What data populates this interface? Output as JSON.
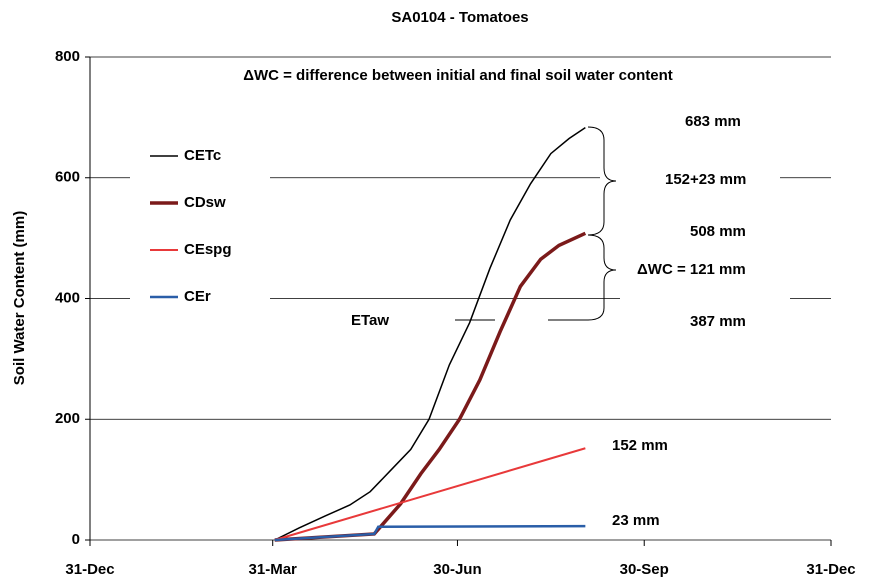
{
  "chart_data": {
    "type": "line",
    "title": "SA0104 - Tomatoes",
    "y_label": "Soil Water Content (mm)",
    "xlim": [
      0,
      365
    ],
    "xticks": [
      {
        "value": 0,
        "label": "31-Dec"
      },
      {
        "value": 90,
        "label": "31-Mar"
      },
      {
        "value": 181,
        "label": "30-Jun"
      },
      {
        "value": 273,
        "label": "30-Sep"
      },
      {
        "value": 365,
        "label": "31-Dec"
      }
    ],
    "ylim": [
      0,
      800
    ],
    "yticks": [
      0,
      200,
      400,
      600,
      800
    ],
    "grid": true,
    "series": [
      {
        "name": "CETc",
        "color": "#000000",
        "x": [
          91,
          103,
          116,
          128,
          138,
          148,
          158,
          167,
          177,
          187,
          197,
          207,
          217,
          227,
          236,
          244
        ],
        "values": [
          0,
          20,
          40,
          58,
          80,
          115,
          150,
          200,
          290,
          360,
          450,
          530,
          590,
          640,
          665,
          683
        ]
      },
      {
        "name": "CDsw",
        "color": "#7b1a1a",
        "x": [
          91,
          140,
          153,
          163,
          172,
          182,
          192,
          202,
          212,
          222,
          231,
          244
        ],
        "values": [
          0,
          10,
          60,
          110,
          150,
          200,
          265,
          345,
          420,
          465,
          488,
          508
        ]
      },
      {
        "name": "CEspg",
        "color": "#e8393a",
        "x": [
          91,
          244
        ],
        "values": [
          0,
          152
        ]
      },
      {
        "name": "CEr",
        "color": "#2a5ea8",
        "x": [
          91,
          140,
          142,
          244
        ],
        "values": [
          0,
          10,
          22,
          23
        ]
      }
    ],
    "annotations": [
      "ΔWC = difference between initial and final soil water content",
      "683 mm",
      "152+23 mm",
      "508 mm",
      "ΔWC = 121 mm",
      "387 mm",
      "ETaw",
      "152 mm",
      "23 mm"
    ]
  }
}
